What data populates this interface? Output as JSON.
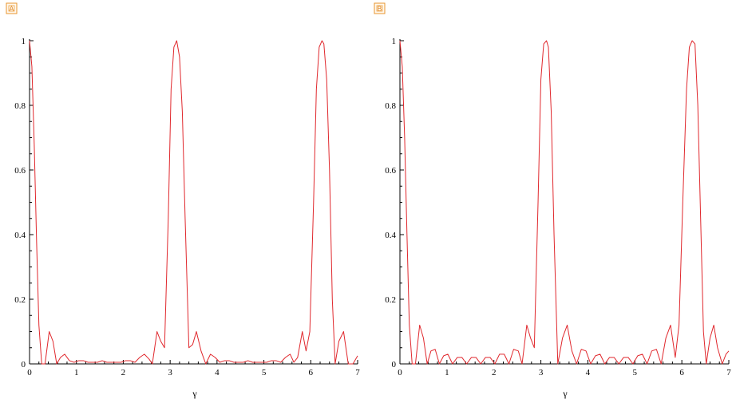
{
  "colors": {
    "curve": "#e0282d",
    "axis": "#000000",
    "badge": "#e8962f"
  },
  "chart_data": [
    {
      "type": "line",
      "panel_label": "A",
      "title": "",
      "xlabel": "γ",
      "ylabel": "",
      "xlim": [
        0,
        7
      ],
      "ylim": [
        0,
        1
      ],
      "x_ticks": [
        0,
        1,
        2,
        3,
        4,
        5,
        6,
        7
      ],
      "x_tick_labels": [
        "0",
        "1",
        "2",
        "3",
        "4",
        "5",
        "6",
        "7"
      ],
      "y_ticks": [
        0,
        0.2,
        0.4,
        0.6,
        0.8,
        1
      ],
      "y_tick_labels": [
        "0",
        "0.2",
        "0.4",
        "0.6",
        "0.8",
        "1"
      ],
      "grid": false,
      "series": [
        {
          "x": [
            0.0,
            0.05,
            0.1,
            0.15,
            0.2,
            0.26,
            0.33,
            0.42,
            0.5,
            0.58,
            0.66,
            0.75,
            0.85,
            0.95,
            1.05,
            1.15,
            1.25,
            1.35,
            1.45,
            1.55,
            1.65,
            1.75,
            1.85,
            1.95,
            2.05,
            2.15,
            2.25,
            2.35,
            2.45,
            2.55,
            2.62,
            2.72,
            2.8,
            2.88,
            2.96,
            3.02,
            3.08,
            3.14,
            3.2,
            3.26,
            3.32,
            3.4,
            3.48,
            3.56,
            3.66,
            3.76,
            3.86,
            3.96,
            4.06,
            4.16,
            4.26,
            4.36,
            4.46,
            4.56,
            4.66,
            4.76,
            4.86,
            4.96,
            5.06,
            5.16,
            5.26,
            5.36,
            5.46,
            5.56,
            5.64,
            5.72,
            5.82,
            5.9,
            5.98,
            6.06,
            6.12,
            6.18,
            6.24,
            6.28,
            6.34,
            6.4,
            6.46,
            6.52,
            6.6,
            6.7,
            6.8,
            6.9,
            7.0
          ],
          "y": [
            1.0,
            0.92,
            0.68,
            0.38,
            0.12,
            0.0,
            0.0,
            0.1,
            0.07,
            0.0,
            0.02,
            0.03,
            0.01,
            0.005,
            0.01,
            0.01,
            0.005,
            0.005,
            0.005,
            0.01,
            0.005,
            0.005,
            0.005,
            0.005,
            0.01,
            0.01,
            0.005,
            0.02,
            0.03,
            0.015,
            0.0,
            0.1,
            0.07,
            0.05,
            0.45,
            0.85,
            0.98,
            1.0,
            0.95,
            0.78,
            0.45,
            0.05,
            0.06,
            0.1,
            0.04,
            0.0,
            0.03,
            0.02,
            0.005,
            0.01,
            0.01,
            0.005,
            0.005,
            0.005,
            0.01,
            0.005,
            0.005,
            0.005,
            0.005,
            0.01,
            0.01,
            0.005,
            0.02,
            0.03,
            0.005,
            0.02,
            0.1,
            0.04,
            0.1,
            0.5,
            0.85,
            0.98,
            1.0,
            0.99,
            0.88,
            0.6,
            0.2,
            0.0,
            0.07,
            0.1,
            0.0,
            0.0,
            0.025
          ]
        }
      ]
    },
    {
      "type": "line",
      "panel_label": "B",
      "title": "",
      "xlabel": "γ",
      "ylabel": "",
      "xlim": [
        0,
        7
      ],
      "ylim": [
        0,
        1
      ],
      "x_ticks": [
        0,
        1,
        2,
        3,
        4,
        5,
        6,
        7
      ],
      "x_tick_labels": [
        "0",
        "1",
        "2",
        "3",
        "4",
        "5",
        "6",
        "7"
      ],
      "y_ticks": [
        0,
        0.2,
        0.4,
        0.6,
        0.8,
        1
      ],
      "y_tick_labels": [
        "0",
        "0.2",
        "0.4",
        "0.6",
        "0.8",
        "1"
      ],
      "grid": false,
      "series": [
        {
          "x": [
            0.0,
            0.05,
            0.1,
            0.15,
            0.2,
            0.26,
            0.33,
            0.42,
            0.5,
            0.58,
            0.66,
            0.75,
            0.84,
            0.93,
            1.02,
            1.12,
            1.22,
            1.32,
            1.42,
            1.52,
            1.62,
            1.72,
            1.82,
            1.92,
            2.02,
            2.12,
            2.22,
            2.32,
            2.42,
            2.52,
            2.6,
            2.7,
            2.78,
            2.86,
            2.94,
            3.0,
            3.06,
            3.12,
            3.16,
            3.22,
            3.28,
            3.36,
            3.46,
            3.56,
            3.66,
            3.76,
            3.86,
            3.96,
            4.06,
            4.16,
            4.26,
            4.36,
            4.46,
            4.56,
            4.66,
            4.76,
            4.86,
            4.96,
            5.06,
            5.16,
            5.26,
            5.36,
            5.46,
            5.56,
            5.66,
            5.76,
            5.86,
            5.94,
            6.02,
            6.1,
            6.16,
            6.22,
            6.28,
            6.34,
            6.4,
            6.46,
            6.52,
            6.6,
            6.68,
            6.76,
            6.86,
            6.94,
            7.0
          ],
          "y": [
            1.0,
            0.92,
            0.7,
            0.4,
            0.12,
            0.0,
            0.0,
            0.12,
            0.08,
            0.0,
            0.04,
            0.045,
            0.0,
            0.025,
            0.03,
            0.0,
            0.02,
            0.02,
            0.0,
            0.02,
            0.02,
            0.0,
            0.02,
            0.02,
            0.0,
            0.03,
            0.03,
            0.0,
            0.045,
            0.04,
            0.0,
            0.12,
            0.08,
            0.05,
            0.5,
            0.88,
            0.99,
            1.0,
            0.98,
            0.78,
            0.4,
            0.0,
            0.08,
            0.12,
            0.04,
            0.0,
            0.045,
            0.04,
            0.0,
            0.025,
            0.03,
            0.0,
            0.02,
            0.02,
            0.0,
            0.02,
            0.02,
            0.0,
            0.025,
            0.03,
            0.0,
            0.04,
            0.045,
            0.0,
            0.08,
            0.12,
            0.02,
            0.12,
            0.5,
            0.85,
            0.98,
            1.0,
            0.99,
            0.8,
            0.45,
            0.1,
            0.0,
            0.08,
            0.12,
            0.05,
            0.0,
            0.03,
            0.04
          ]
        }
      ]
    }
  ]
}
